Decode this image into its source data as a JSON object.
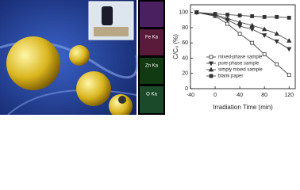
{
  "image_labels": [
    "Fe Ka",
    "Zn Ka",
    "O Ka"
  ],
  "chart_data": {
    "type": "line",
    "xlabel": "Irradiation Time (min)",
    "ylabel": "C/C₀ (%)",
    "x": [
      -30,
      0,
      20,
      40,
      60,
      80,
      100,
      120
    ],
    "xlim": [
      -40,
      130
    ],
    "xticks": [
      -40,
      0,
      40,
      80,
      120
    ],
    "ylim": [
      0,
      110
    ],
    "yticks": [
      0,
      20,
      40,
      60,
      80,
      100
    ],
    "legend": "lower-left",
    "series": [
      {
        "name": "mixed-phase sample",
        "color": "#333333",
        "marker": "square-open",
        "values": [
          100,
          95,
          85,
          72,
          60,
          45,
          32,
          18
        ]
      },
      {
        "name": "pure-phase sample",
        "color": "#333333",
        "marker": "triangle-down",
        "values": [
          100,
          96,
          90,
          82,
          78,
          70,
          62,
          52
        ]
      },
      {
        "name": "simply mixed sample",
        "color": "#333333",
        "marker": "triangle-up",
        "values": [
          100,
          97,
          92,
          87,
          83,
          78,
          72,
          63
        ]
      },
      {
        "name": "blank paper",
        "color": "#333333",
        "marker": "square",
        "values": [
          100,
          98,
          97,
          96,
          95,
          94,
          94,
          93
        ]
      }
    ]
  }
}
